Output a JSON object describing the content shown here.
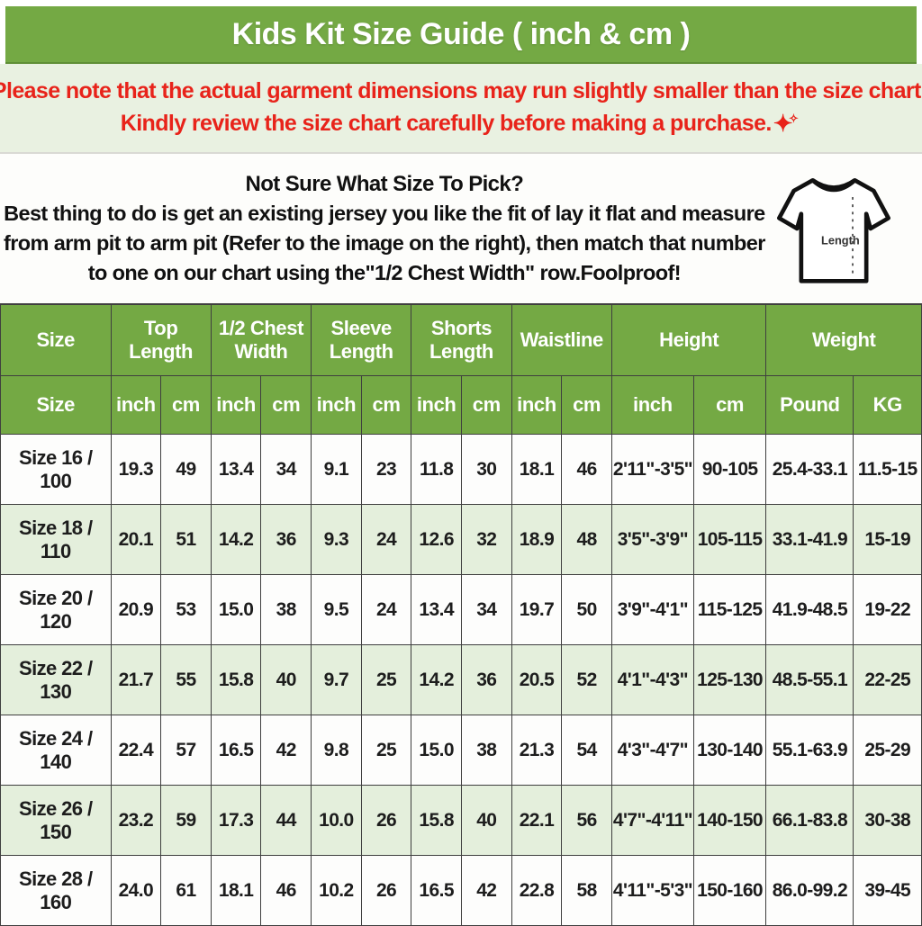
{
  "title": "Kids Kit Size Guide ( inch & cm )",
  "accent_colors": {
    "green": "#74a944",
    "light_green": "#e4efdc",
    "notice_background": "#e9f1e1",
    "red": "#e8231a"
  },
  "notice": {
    "line1": "Please note that the actual garment dimensions may run slightly smaller than the size chart",
    "line1_period": ".",
    "line2": "Kindly review the size chart carefully before making a purchase.",
    "sparkle_big": "✦",
    "sparkle_small": "✧"
  },
  "guide": {
    "heading": "Not Sure What Size To Pick?",
    "line1": "Best thing to do is get an existing jersey you like the fit of lay it flat and measure",
    "line2": "from arm pit to arm pit (Refer to the image on the right), then match that number",
    "line3": "to one on our chart using the\"1/2 Chest Width\" row.Foolproof!",
    "shirt_label": "Length"
  },
  "table": {
    "groups": [
      {
        "label": "Size",
        "span": 1
      },
      {
        "label": "Top Length",
        "span": 2
      },
      {
        "label": "1/2 Chest Width",
        "span": 2
      },
      {
        "label": "Sleeve Length",
        "span": 2
      },
      {
        "label": "Shorts Length",
        "span": 2
      },
      {
        "label": "Waistline",
        "span": 2
      },
      {
        "label": "Height",
        "span": 2
      },
      {
        "label": "Weight",
        "span": 2
      }
    ],
    "subheaders": [
      "Size",
      "inch",
      "cm",
      "inch",
      "cm",
      "inch",
      "cm",
      "inch",
      "cm",
      "inch",
      "cm",
      "inch",
      "cm",
      "Pound",
      "KG"
    ],
    "rows": [
      [
        "Size 16 / 100",
        "19.3",
        "49",
        "13.4",
        "34",
        "9.1",
        "23",
        "11.8",
        "30",
        "18.1",
        "46",
        "2'11\"-3'5\"",
        "90-105",
        "25.4-33.1",
        "11.5-15"
      ],
      [
        "Size 18 / 110",
        "20.1",
        "51",
        "14.2",
        "36",
        "9.3",
        "24",
        "12.6",
        "32",
        "18.9",
        "48",
        "3'5\"-3'9\"",
        "105-115",
        "33.1-41.9",
        "15-19"
      ],
      [
        "Size 20 / 120",
        "20.9",
        "53",
        "15.0",
        "38",
        "9.5",
        "24",
        "13.4",
        "34",
        "19.7",
        "50",
        "3'9\"-4'1\"",
        "115-125",
        "41.9-48.5",
        "19-22"
      ],
      [
        "Size 22 / 130",
        "21.7",
        "55",
        "15.8",
        "40",
        "9.7",
        "25",
        "14.2",
        "36",
        "20.5",
        "52",
        "4'1\"-4'3\"",
        "125-130",
        "48.5-55.1",
        "22-25"
      ],
      [
        "Size 24 / 140",
        "22.4",
        "57",
        "16.5",
        "42",
        "9.8",
        "25",
        "15.0",
        "38",
        "21.3",
        "54",
        "4'3\"-4'7\"",
        "130-140",
        "55.1-63.9",
        "25-29"
      ],
      [
        "Size 26 / 150",
        "23.2",
        "59",
        "17.3",
        "44",
        "10.0",
        "26",
        "15.8",
        "40",
        "22.1",
        "56",
        "4'7\"-4'11\"",
        "140-150",
        "66.1-83.8",
        "30-38"
      ],
      [
        "Size 28 / 160",
        "24.0",
        "61",
        "18.1",
        "46",
        "10.2",
        "26",
        "16.5",
        "42",
        "22.8",
        "58",
        "4'11\"-5'3\"",
        "150-160",
        "86.0-99.2",
        "39-45"
      ]
    ]
  }
}
